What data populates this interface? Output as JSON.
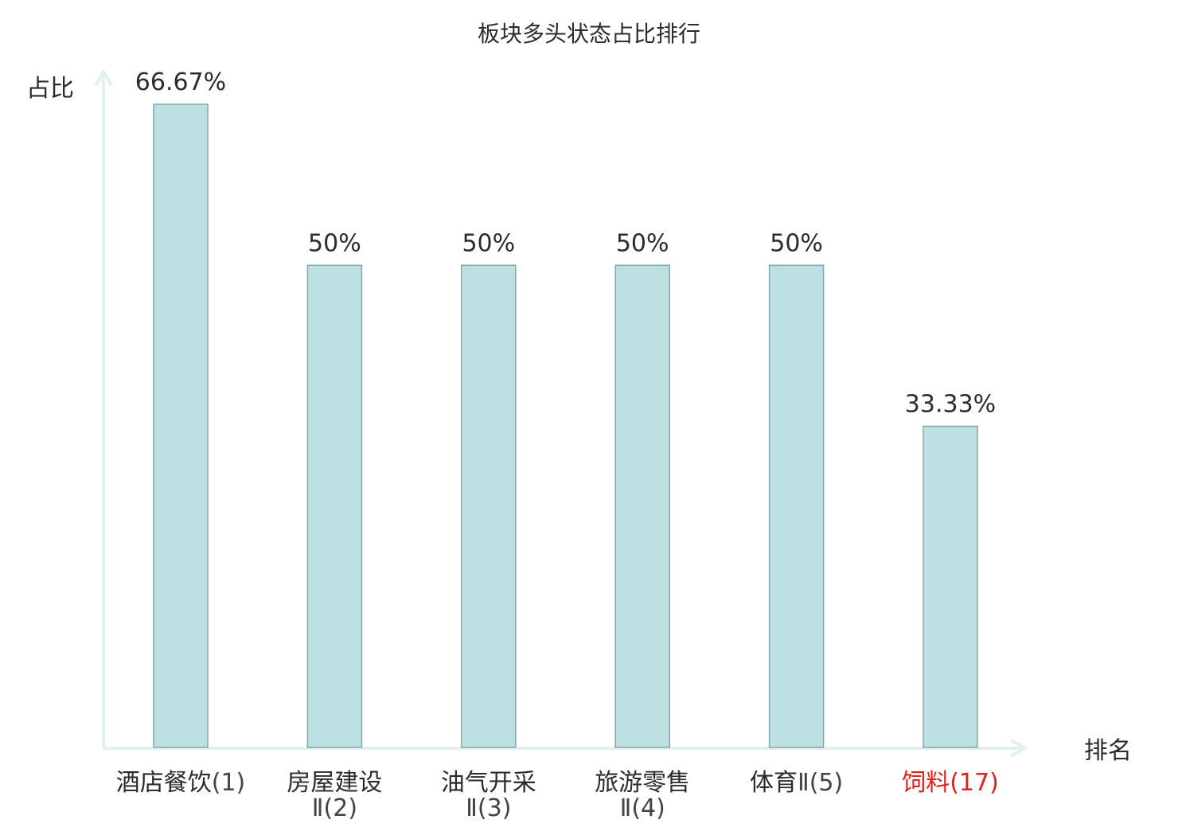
{
  "chart_data": {
    "type": "bar",
    "title": "板块多头状态占比排行",
    "ylabel": "占比",
    "xlabel": "排名",
    "categories": [
      {
        "name": "酒店餐饮",
        "rank": "(1)",
        "lines": [
          {
            "cat": "酒店餐饮",
            "rank": "(1)"
          }
        ]
      },
      {
        "name": "房屋建设Ⅱ",
        "rank": "(2)",
        "lines": [
          {
            "cat": "房屋建设",
            "rank": ""
          },
          {
            "cat": "",
            "rank": "Ⅱ(2)"
          }
        ]
      },
      {
        "name": "油气开采Ⅱ",
        "rank": "(3)",
        "lines": [
          {
            "cat": "油气开采",
            "rank": ""
          },
          {
            "cat": "",
            "rank": "Ⅱ(3)"
          }
        ]
      },
      {
        "name": "旅游零售Ⅱ",
        "rank": "(4)",
        "lines": [
          {
            "cat": "旅游零售",
            "rank": ""
          },
          {
            "cat": "",
            "rank": "Ⅱ(4)"
          }
        ]
      },
      {
        "name": "体育Ⅱ",
        "rank": "(5)",
        "lines": [
          {
            "cat": "体育",
            "rank": "Ⅱ(5)"
          }
        ]
      },
      {
        "name": "饲料",
        "rank": "(17)",
        "lines": [
          {
            "cat": "饲料",
            "rank": "(17)"
          }
        ],
        "highlight": true
      }
    ],
    "values": [
      66.67,
      50,
      50,
      50,
      50,
      33.33
    ],
    "value_labels": [
      "66.67%",
      "50%",
      "50%",
      "50%",
      "50%",
      "33.33%"
    ],
    "ylim": [
      0,
      66.67
    ],
    "grid": false,
    "colors": {
      "bar_fill": "#bde1e3",
      "bar_stroke": "#86a5a7",
      "axis": "#e0f2ef",
      "text": "#2b2b2b",
      "rank_text": "#444444",
      "highlight": "#e0201b"
    }
  }
}
